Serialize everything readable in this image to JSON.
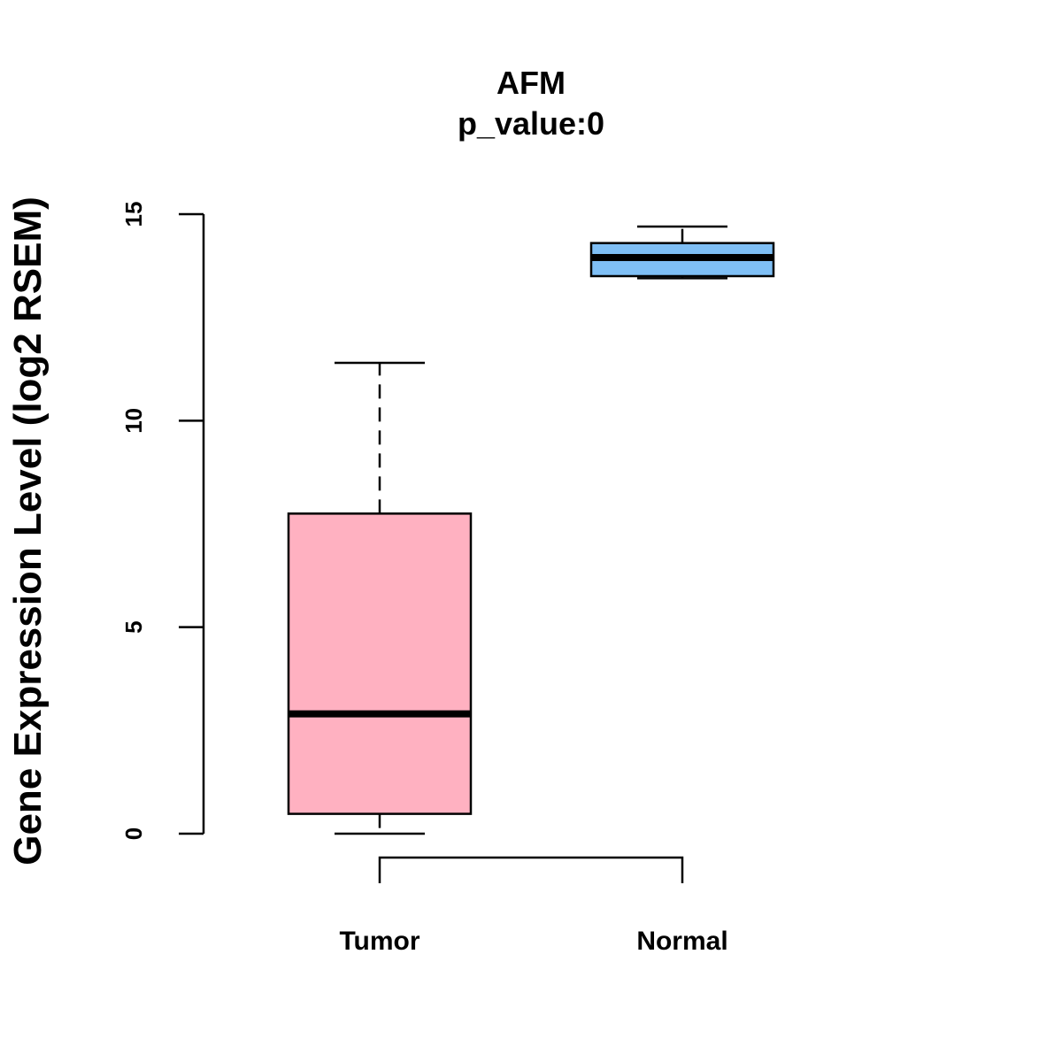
{
  "chart_data": {
    "type": "boxplot",
    "title": "AFM",
    "subtitle": "p_value:0",
    "xlabel": "",
    "ylabel": "Gene Expression Level (log2 RSEM)",
    "ylim": [
      0,
      15
    ],
    "yticks": [
      "0",
      "5",
      "10",
      "15"
    ],
    "ytick_values": [
      0,
      5,
      10,
      15
    ],
    "grid": false,
    "categories": [
      "Tumor",
      "Normal"
    ],
    "boxes": [
      {
        "name": "Tumor",
        "whisker_low": 0.0,
        "q1": 0.48,
        "median": 2.9,
        "q3": 7.75,
        "whisker_high": 11.4,
        "color": "#FFB1C1"
      },
      {
        "name": "Normal",
        "whisker_low": 13.45,
        "q1": 13.5,
        "median": 13.95,
        "q3": 14.3,
        "whisker_high": 14.7,
        "color": "#7FBFF5"
      }
    ],
    "comparison_bracket": [
      "Tumor",
      "Normal"
    ]
  }
}
